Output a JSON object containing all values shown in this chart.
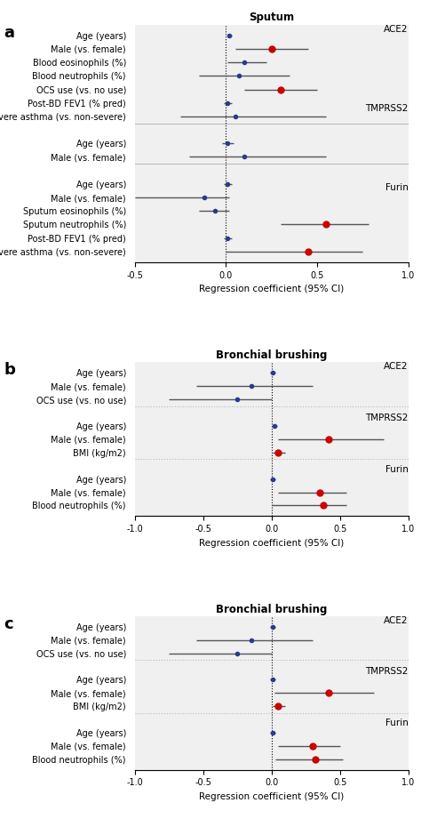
{
  "panel_a": {
    "title": "Sputum",
    "xlabel": "Regression coefficient (95% CI)",
    "xlim": [
      -0.5,
      1.0
    ],
    "xticks": [
      -0.5,
      0.0,
      0.5,
      1.0
    ],
    "xticklabels": [
      "-0.5",
      "0.0",
      "0.5",
      "1.0"
    ],
    "groups": [
      {
        "label": "ACE2",
        "rows": [
          {
            "name": "Age (years)",
            "coef": 0.02,
            "lo": 0.01,
            "hi": 0.03,
            "color": "#2b3990"
          },
          {
            "name": "Male (vs. female)",
            "coef": 0.25,
            "lo": 0.05,
            "hi": 0.45,
            "color": "#cc0000"
          },
          {
            "name": "Blood eosinophils (%)",
            "coef": 0.1,
            "lo": 0.01,
            "hi": 0.22,
            "color": "#2b3990"
          },
          {
            "name": "Blood neutrophils (%)",
            "coef": 0.07,
            "lo": -0.15,
            "hi": 0.35,
            "color": "#2b3990"
          },
          {
            "name": "OCS use (vs. no use)",
            "coef": 0.3,
            "lo": 0.1,
            "hi": 0.5,
            "color": "#cc0000"
          },
          {
            "name": "Post-BD FEV1 (% pred)",
            "coef": 0.01,
            "lo": -0.01,
            "hi": 0.03,
            "color": "#2b3990"
          },
          {
            "name": "Severe asthma (vs. non-severe)",
            "coef": 0.05,
            "lo": -0.25,
            "hi": 0.55,
            "color": "#2b3990"
          }
        ]
      },
      {
        "label": "TMPRSS2",
        "rows": [
          {
            "name": "Age (years)",
            "coef": 0.01,
            "lo": -0.02,
            "hi": 0.04,
            "color": "#2b3990"
          },
          {
            "name": "Male (vs. female)",
            "coef": 0.1,
            "lo": -0.2,
            "hi": 0.55,
            "color": "#2b3990"
          }
        ]
      },
      {
        "label": "Furin",
        "rows": [
          {
            "name": "Age (years)",
            "coef": 0.01,
            "lo": -0.01,
            "hi": 0.03,
            "color": "#2b3990"
          },
          {
            "name": "Male (vs. female)",
            "coef": -0.12,
            "lo": -0.5,
            "hi": 0.02,
            "color": "#2b3990"
          },
          {
            "name": "Sputum eosinophils (%)",
            "coef": -0.06,
            "lo": -0.15,
            "hi": 0.02,
            "color": "#2b3990"
          },
          {
            "name": "Sputum neutrophils (%)",
            "coef": 0.55,
            "lo": 0.3,
            "hi": 0.78,
            "color": "#cc0000"
          },
          {
            "name": "Post-BD FEV1 (% pred)",
            "coef": 0.01,
            "lo": -0.01,
            "hi": 0.03,
            "color": "#2b3990"
          },
          {
            "name": "Severe asthma (vs. non-severe)",
            "coef": 0.45,
            "lo": 0.0,
            "hi": 0.75,
            "color": "#cc0000"
          }
        ]
      }
    ]
  },
  "panel_b": {
    "title": "Bronchial brushing",
    "xlabel": "Regression coefficient (95% CI)",
    "xlim": [
      -1.0,
      1.0
    ],
    "xticks": [
      -1.0,
      -0.5,
      0.0,
      0.5,
      1.0
    ],
    "xticklabels": [
      "-1.0",
      "-0.5",
      "0.0",
      "0.5",
      "1.0"
    ],
    "groups": [
      {
        "label": "ACE2",
        "rows": [
          {
            "name": "Age (years)",
            "coef": 0.01,
            "lo": -0.01,
            "hi": 0.03,
            "color": "#2b3990"
          },
          {
            "name": "Male (vs. female)",
            "coef": -0.15,
            "lo": -0.55,
            "hi": 0.3,
            "color": "#2b3990"
          },
          {
            "name": "OCS use (vs. no use)",
            "coef": -0.25,
            "lo": -0.75,
            "hi": 0.0,
            "color": "#2b3990"
          }
        ]
      },
      {
        "label": "TMPRSS2",
        "rows": [
          {
            "name": "Age (years)",
            "coef": 0.02,
            "lo": 0.0,
            "hi": 0.04,
            "color": "#2b3990"
          },
          {
            "name": "Male (vs. female)",
            "coef": 0.42,
            "lo": 0.05,
            "hi": 0.82,
            "color": "#cc0000"
          },
          {
            "name": "BMI (kg/m2)",
            "coef": 0.05,
            "lo": 0.01,
            "hi": 0.1,
            "color": "#cc0000"
          }
        ]
      },
      {
        "label": "Furin",
        "rows": [
          {
            "name": "Age (years)",
            "coef": 0.01,
            "lo": -0.01,
            "hi": 0.03,
            "color": "#2b3990"
          },
          {
            "name": "Male (vs. female)",
            "coef": 0.35,
            "lo": 0.05,
            "hi": 0.55,
            "color": "#cc0000"
          },
          {
            "name": "Blood neutrophils (%)",
            "coef": 0.38,
            "lo": 0.0,
            "hi": 0.55,
            "color": "#cc0000"
          }
        ]
      }
    ]
  },
  "panel_c": {
    "title": "Bronchial brushing",
    "xlabel": "Regression coefficient (95% CI)",
    "xlim": [
      -1.0,
      1.0
    ],
    "xticks": [
      -1.0,
      -0.5,
      0.0,
      0.5,
      1.0
    ],
    "xticklabels": [
      "-1.0",
      "-0.5",
      "0.0",
      "0.5",
      "1.0"
    ],
    "groups": [
      {
        "label": "ACE2",
        "rows": [
          {
            "name": "Age (years)",
            "coef": 0.01,
            "lo": -0.01,
            "hi": 0.03,
            "color": "#2b3990"
          },
          {
            "name": "Male (vs. female)",
            "coef": -0.15,
            "lo": -0.55,
            "hi": 0.3,
            "color": "#2b3990"
          },
          {
            "name": "OCS use (vs. no use)",
            "coef": -0.25,
            "lo": -0.75,
            "hi": 0.0,
            "color": "#2b3990"
          }
        ]
      },
      {
        "label": "TMPRSS2",
        "rows": [
          {
            "name": "Age (years)",
            "coef": 0.01,
            "lo": -0.01,
            "hi": 0.03,
            "color": "#2b3990"
          },
          {
            "name": "Male (vs. female)",
            "coef": 0.42,
            "lo": 0.02,
            "hi": 0.75,
            "color": "#cc0000"
          },
          {
            "name": "BMI (kg/m2)",
            "coef": 0.05,
            "lo": 0.01,
            "hi": 0.1,
            "color": "#cc0000"
          }
        ]
      },
      {
        "label": "Furin",
        "rows": [
          {
            "name": "Age (years)",
            "coef": 0.01,
            "lo": -0.01,
            "hi": 0.03,
            "color": "#2b3990"
          },
          {
            "name": "Male (vs. female)",
            "coef": 0.3,
            "lo": 0.05,
            "hi": 0.5,
            "color": "#cc0000"
          },
          {
            "name": "Blood neutrophils (%)",
            "coef": 0.32,
            "lo": 0.03,
            "hi": 0.52,
            "color": "#cc0000"
          }
        ]
      }
    ]
  },
  "bg_color": "#ffffff",
  "sep_color": "#bbbbbb",
  "dot_size_blue": 4,
  "dot_size_red": 6,
  "lw": 1.0
}
